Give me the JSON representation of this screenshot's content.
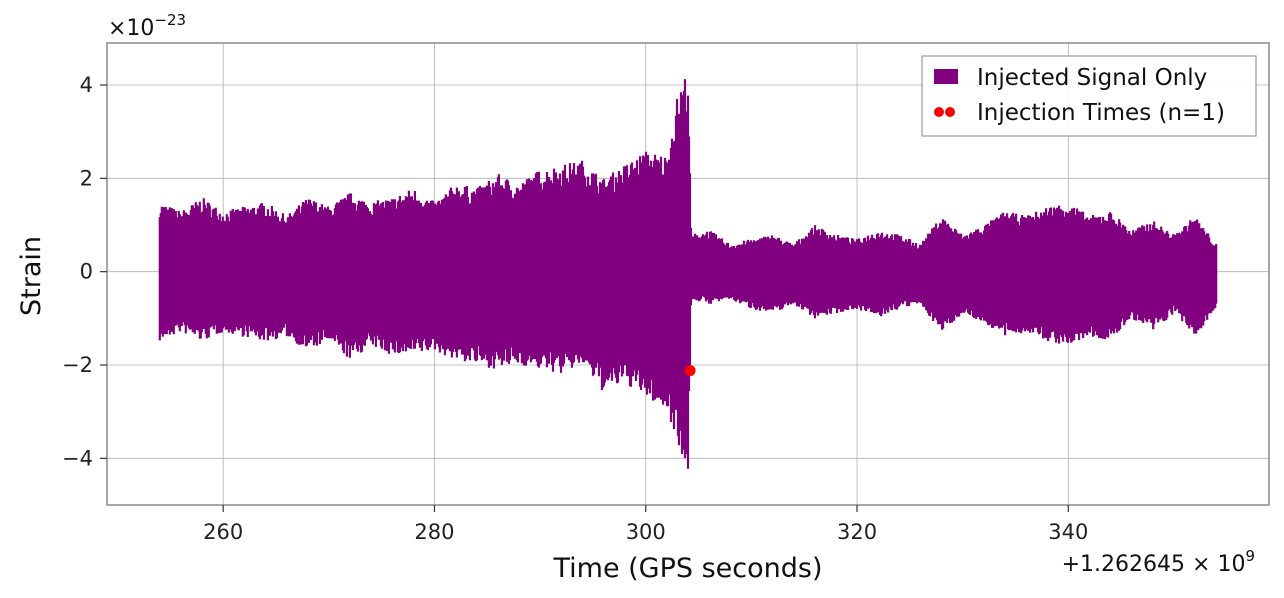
{
  "chart_data": {
    "type": "line",
    "xlabel": "Time (GPS seconds)",
    "ylabel": "Strain",
    "x_offset_label": "+1.262645 × 10",
    "x_offset_exponent": "9",
    "y_scale_label": "×10",
    "y_scale_exponent": "−23",
    "xlim": [
      249,
      359
    ],
    "ylim": [
      -5.0,
      4.9
    ],
    "x_ticks": [
      260,
      280,
      300,
      320,
      340
    ],
    "x_tick_labels": [
      "260",
      "280",
      "300",
      "320",
      "340"
    ],
    "y_ticks": [
      -4,
      -2,
      0,
      2,
      4
    ],
    "y_tick_labels": [
      "−4",
      "−2",
      "0",
      "2",
      "4"
    ],
    "grid": true,
    "legend_position": "top-right",
    "series": [
      {
        "name": "Injected Signal Only",
        "kind": "filled-oscillation",
        "color": "#800080",
        "envelope": {
          "x": [
            254,
            256,
            258,
            260,
            262,
            264,
            266,
            268,
            270,
            272,
            274,
            276,
            278,
            280,
            282,
            284,
            286,
            288,
            290,
            292,
            294,
            296,
            298,
            300,
            302,
            303,
            304,
            304.3,
            306,
            308,
            310,
            312,
            314,
            316,
            318,
            320,
            322,
            324,
            326,
            328,
            330,
            332,
            334,
            336,
            338,
            340,
            342,
            344,
            346,
            348,
            350,
            352,
            354
          ],
          "upper": [
            1.5,
            1.3,
            1.6,
            1.3,
            1.4,
            1.5,
            1.2,
            1.6,
            1.4,
            1.7,
            1.5,
            1.6,
            1.8,
            1.5,
            1.9,
            1.8,
            2.1,
            1.9,
            2.2,
            2.3,
            2.4,
            2.0,
            2.3,
            2.6,
            2.5,
            3.8,
            4.4,
            0.8,
            0.9,
            0.6,
            0.7,
            0.8,
            0.6,
            1.0,
            0.8,
            0.7,
            0.9,
            0.8,
            0.6,
            1.2,
            0.8,
            1.0,
            1.3,
            1.2,
            1.4,
            1.5,
            1.2,
            1.3,
            0.9,
            1.1,
            0.8,
            1.2,
            0.6
          ],
          "lower": [
            -1.5,
            -1.3,
            -1.5,
            -1.3,
            -1.4,
            -1.5,
            -1.4,
            -1.7,
            -1.5,
            -1.9,
            -1.6,
            -1.8,
            -1.8,
            -1.7,
            -1.9,
            -2.0,
            -2.1,
            -2.0,
            -2.1,
            -2.2,
            -2.0,
            -2.6,
            -2.4,
            -2.7,
            -3.0,
            -3.6,
            -4.5,
            -0.6,
            -0.7,
            -0.6,
            -0.8,
            -0.9,
            -0.7,
            -1.0,
            -0.9,
            -0.8,
            -1.0,
            -0.8,
            -0.7,
            -1.3,
            -0.9,
            -1.1,
            -1.4,
            -1.3,
            -1.5,
            -1.6,
            -1.4,
            -1.5,
            -1.0,
            -1.3,
            -0.9,
            -1.4,
            -0.8
          ]
        }
      },
      {
        "name": "Injection Times (n=1)",
        "kind": "scatter",
        "color": "#ff0000",
        "x": [
          304.2
        ],
        "y": [
          -2.12
        ]
      }
    ]
  }
}
